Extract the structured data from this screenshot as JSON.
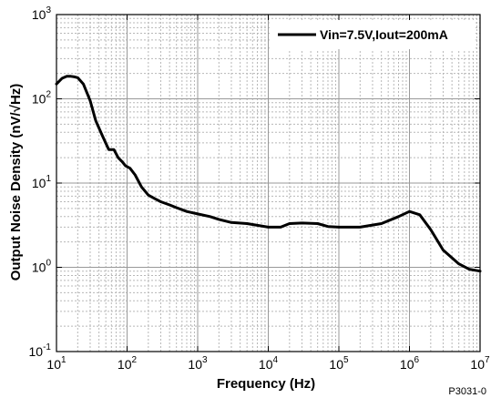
{
  "chart_data": {
    "type": "line",
    "xlabel": "Frequency (Hz)",
    "ylabel": "Output Noise Density (nV/√Hz)",
    "x_scale": "log",
    "y_scale": "log",
    "xlim": [
      10,
      10000000
    ],
    "ylim": [
      0.1,
      1000
    ],
    "grid": true,
    "legend_position": "top-right",
    "x_ticks": [
      {
        "base": "10",
        "exp": "1"
      },
      {
        "base": "10",
        "exp": "2"
      },
      {
        "base": "10",
        "exp": "3"
      },
      {
        "base": "10",
        "exp": "4"
      },
      {
        "base": "10",
        "exp": "5"
      },
      {
        "base": "10",
        "exp": "6"
      },
      {
        "base": "10",
        "exp": "7"
      }
    ],
    "y_ticks": [
      {
        "base": "10",
        "exp": "-1"
      },
      {
        "base": "10",
        "exp": "0"
      },
      {
        "base": "10",
        "exp": "1"
      },
      {
        "base": "10",
        "exp": "2"
      },
      {
        "base": "10",
        "exp": "3"
      }
    ],
    "series": [
      {
        "name": "Vin=7.5V,Iout=200mA",
        "color": "#000000",
        "x": [
          10,
          12,
          14,
          16,
          18,
          20,
          24,
          30,
          36,
          45,
          55,
          65,
          75,
          85,
          95,
          110,
          130,
          160,
          200,
          250,
          300,
          400,
          500,
          700,
          1000,
          1500,
          2000,
          3000,
          5000,
          10000,
          15000,
          20000,
          30000,
          50000,
          70000,
          100000,
          200000,
          400000,
          700000,
          1000000,
          1400000,
          2000000,
          3000000,
          5000000,
          7000000,
          10000000
        ],
        "y": [
          150,
          175,
          185,
          185,
          182,
          178,
          150,
          95,
          55,
          36,
          25,
          25,
          20,
          18,
          16,
          15,
          12.5,
          9,
          7.2,
          6.5,
          6,
          5.5,
          5.1,
          4.6,
          4.3,
          4.0,
          3.7,
          3.4,
          3.3,
          3.0,
          3.0,
          3.3,
          3.35,
          3.3,
          3.05,
          3.0,
          3.0,
          3.3,
          4.0,
          4.6,
          4.2,
          2.8,
          1.6,
          1.1,
          0.95,
          0.9
        ]
      }
    ]
  },
  "figure_code": "P3031-0"
}
